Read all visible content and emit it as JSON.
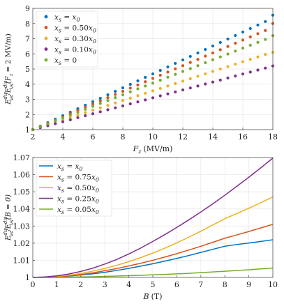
{
  "colors": {
    "blue": "#0072BD",
    "orange": "#D95319",
    "yellow": "#EDB120",
    "purple": "#7E2F8E",
    "green": "#77AC30"
  },
  "chart_data": [
    {
      "type": "scatter",
      "xlabel_var": "F",
      "xlabel_sub": "z",
      "xlabel_unit": "(MV/m)",
      "ylabel_num": "E",
      "ylabel_rest": "/E",
      "ylabel_cond": "(F",
      "ylabel_cond_val": "= 2 MV/m)",
      "ylabel_sup": "dis",
      "ylabel_sub": "vs",
      "xlim": [
        2,
        18
      ],
      "ylim": [
        1,
        9
      ],
      "xticks": [
        "2",
        "4",
        "6",
        "8",
        "10",
        "12",
        "14",
        "16",
        "18"
      ],
      "yticks": [
        "1",
        "2",
        "3",
        "4",
        "5",
        "6",
        "7",
        "8",
        "9"
      ],
      "x": [
        2,
        2.5,
        3,
        3.5,
        4,
        4.5,
        5,
        5.5,
        6,
        6.5,
        7,
        7.5,
        8,
        8.5,
        9,
        9.5,
        10,
        10.5,
        11,
        11.5,
        12,
        12.5,
        13,
        13.5,
        14,
        14.5,
        15,
        15.5,
        16,
        16.5,
        17,
        17.5,
        18
      ],
      "legend_position": "top-left",
      "series": [
        {
          "name": "x_s = x_0",
          "var": "x",
          "sub": "s",
          "eq": " = ",
          "rhs": "x",
          "rhs_sub": "0",
          "color_key": "blue",
          "values": [
            1.0,
            1.23,
            1.46,
            1.69,
            1.92,
            2.15,
            2.38,
            2.61,
            2.84,
            3.07,
            3.3,
            3.53,
            3.76,
            3.99,
            4.22,
            4.45,
            4.68,
            4.91,
            5.14,
            5.37,
            5.6,
            5.83,
            6.06,
            6.29,
            6.52,
            6.75,
            6.98,
            7.21,
            7.44,
            7.67,
            7.9,
            8.13,
            8.55
          ]
        },
        {
          "name": "x_s = 0.50x_0",
          "var": "x",
          "sub": "s",
          "eq": " = 0.50",
          "rhs": "x",
          "rhs_sub": "0",
          "color_key": "orange",
          "values": [
            1.0,
            1.21,
            1.42,
            1.63,
            1.84,
            2.05,
            2.27,
            2.48,
            2.69,
            2.9,
            3.11,
            3.32,
            3.53,
            3.74,
            3.95,
            4.16,
            4.38,
            4.59,
            4.8,
            5.01,
            5.22,
            5.43,
            5.64,
            5.85,
            6.06,
            6.27,
            6.49,
            6.7,
            6.91,
            7.12,
            7.33,
            7.54,
            8.0
          ]
        },
        {
          "name": "x_s = 0.30x_0",
          "var": "x",
          "sub": "s",
          "eq": " = 0.30",
          "rhs": "x",
          "rhs_sub": "0",
          "color_key": "yellow",
          "values": [
            1.0,
            1.16,
            1.32,
            1.48,
            1.64,
            1.8,
            1.96,
            2.12,
            2.28,
            2.44,
            2.6,
            2.76,
            2.92,
            3.08,
            3.24,
            3.4,
            3.56,
            3.72,
            3.88,
            4.04,
            4.2,
            4.36,
            4.52,
            4.68,
            4.84,
            5.0,
            5.16,
            5.32,
            5.48,
            5.64,
            5.8,
            5.96,
            6.1
          ]
        },
        {
          "name": "x_s = 0.10x_0",
          "var": "x",
          "sub": "s",
          "eq": " = 0.10",
          "rhs": "x",
          "rhs_sub": "0",
          "color_key": "purple",
          "values": [
            1.0,
            1.13,
            1.26,
            1.39,
            1.52,
            1.65,
            1.79,
            1.92,
            2.05,
            2.18,
            2.31,
            2.44,
            2.57,
            2.7,
            2.83,
            2.96,
            3.1,
            3.23,
            3.36,
            3.49,
            3.62,
            3.75,
            3.88,
            4.01,
            4.14,
            4.27,
            4.41,
            4.54,
            4.67,
            4.8,
            4.93,
            5.06,
            5.2
          ]
        },
        {
          "name": "x_s = 0",
          "var": "x",
          "sub": "s",
          "eq": " = 0",
          "rhs": "",
          "rhs_sub": "",
          "color_key": "green",
          "values": [
            1.0,
            1.19,
            1.38,
            1.58,
            1.77,
            1.96,
            2.15,
            2.34,
            2.54,
            2.73,
            2.92,
            3.11,
            3.3,
            3.5,
            3.69,
            3.88,
            4.07,
            4.26,
            4.46,
            4.65,
            4.84,
            5.03,
            5.22,
            5.42,
            5.61,
            5.8,
            5.99,
            6.18,
            6.38,
            6.57,
            6.76,
            6.95,
            7.2
          ]
        }
      ]
    },
    {
      "type": "line",
      "xlabel_var": "B",
      "xlabel_unit": "(T)",
      "ylabel_num": "E",
      "ylabel_rest": "/E",
      "ylabel_cond": "(B = 0)",
      "ylabel_sup": "dis",
      "ylabel_sub": "vs",
      "xlim": [
        0,
        10
      ],
      "ylim": [
        1.0,
        1.07
      ],
      "xticks": [
        "0",
        "1",
        "2",
        "3",
        "4",
        "5",
        "6",
        "7",
        "8",
        "9",
        "10"
      ],
      "yticks": [
        "1",
        "1.01",
        "1.02",
        "1.03",
        "1.04",
        "1.05",
        "1.06",
        "1.07"
      ],
      "x": [
        0,
        0.5,
        1,
        1.5,
        2,
        2.5,
        3,
        3.5,
        4,
        4.5,
        5,
        5.5,
        6,
        6.5,
        7,
        7.5,
        8,
        8.5,
        9,
        9.5,
        10
      ],
      "legend_position": "top-left",
      "series": [
        {
          "name": "x_s = x_0",
          "var": "x",
          "sub": "s",
          "eq": " = ",
          "rhs": "x",
          "rhs_sub": "0",
          "color_key": "blue",
          "values": [
            1.0,
            1.0001,
            1.0003,
            1.0008,
            1.0014,
            1.0021,
            1.003,
            1.0041,
            1.0053,
            1.0066,
            1.008,
            1.0095,
            1.0111,
            1.0128,
            1.0146,
            1.0164,
            1.0182,
            1.0192,
            1.0201,
            1.021,
            1.022
          ]
        },
        {
          "name": "x_s = 0.75x_0",
          "var": "x",
          "sub": "s",
          "eq": " = 0.75",
          "rhs": "x",
          "rhs_sub": "0",
          "color_key": "orange",
          "values": [
            1.0,
            1.0001,
            1.0004,
            1.0009,
            1.0017,
            1.0027,
            1.0039,
            1.0052,
            1.0067,
            1.0083,
            1.01,
            1.0119,
            1.0139,
            1.016,
            1.0182,
            1.0205,
            1.0229,
            1.0248,
            1.0268,
            1.0289,
            1.031
          ]
        },
        {
          "name": "x_s = 0.50x_0",
          "var": "x",
          "sub": "s",
          "eq": " = 0.50",
          "rhs": "x",
          "rhs_sub": "0",
          "color_key": "yellow",
          "values": [
            1.0,
            1.0002,
            1.0006,
            1.0013,
            1.0023,
            1.0037,
            1.0052,
            1.0071,
            1.0092,
            1.0116,
            1.0142,
            1.0171,
            1.0202,
            1.0235,
            1.027,
            1.0306,
            1.0343,
            1.0373,
            1.0404,
            1.0436,
            1.047
          ]
        },
        {
          "name": "x_s = 0.25x_0",
          "var": "x",
          "sub": "s",
          "eq": " = 0.25",
          "rhs": "x",
          "rhs_sub": "0",
          "color_key": "purple",
          "values": [
            1.0,
            1.0003,
            1.0009,
            1.002,
            1.0035,
            1.0054,
            1.0078,
            1.0105,
            1.0137,
            1.0172,
            1.021,
            1.025,
            1.0292,
            1.0336,
            1.0382,
            1.043,
            1.048,
            1.0532,
            1.0585,
            1.064,
            1.0697
          ]
        },
        {
          "name": "x_s = 0.05x_0",
          "var": "x",
          "sub": "s",
          "eq": " = 0.05",
          "rhs": "x",
          "rhs_sub": "0",
          "color_key": "green",
          "values": [
            1.0,
            1.0,
            1.0001,
            1.0002,
            1.0003,
            1.0004,
            1.0006,
            1.0008,
            1.001,
            1.0012,
            1.0015,
            1.0018,
            1.0021,
            1.0024,
            1.0028,
            1.0032,
            1.0036,
            1.004,
            1.0045,
            1.005,
            1.0055
          ]
        }
      ]
    }
  ]
}
